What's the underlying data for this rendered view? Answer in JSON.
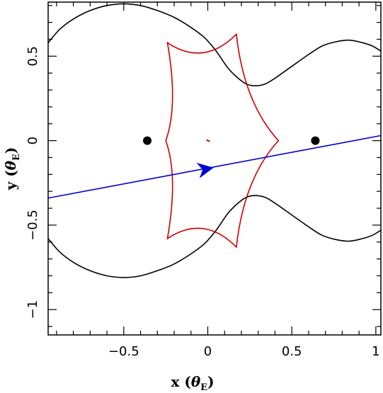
{
  "chart_data": {
    "type": "line",
    "title": "",
    "xlabel": {
      "main": "x (",
      "symbol": "θ",
      "sub": "E",
      "close": ")"
    },
    "ylabel": {
      "main": "y (",
      "symbol": "θ",
      "sub": "E",
      "close": ")"
    },
    "xlim": [
      -0.95,
      1.03
    ],
    "ylim": [
      -1.15,
      0.82
    ],
    "xticks_major": [
      -0.5,
      0,
      0.5,
      1
    ],
    "xtick_labels": [
      "−0.5",
      "0",
      "0.5",
      "1"
    ],
    "yticks_major": [
      -1,
      -0.5,
      0,
      0.5
    ],
    "ytick_labels": [
      "−1",
      "−0.5",
      "0",
      "0.5"
    ],
    "minor_step": 0.1,
    "grid": false,
    "colors": {
      "critical_curve": "#000000",
      "caustic": "#cc0000",
      "source_trajectory": "#0000cc",
      "lens": "#000000"
    },
    "lenses": [
      {
        "x": -0.36,
        "y": 0.0
      },
      {
        "x": 0.64,
        "y": 0.0
      }
    ],
    "critical_curve": {
      "upper": [
        [
          -0.95,
          0.58
        ],
        [
          -0.88,
          0.66
        ],
        [
          -0.8,
          0.72
        ],
        [
          -0.7,
          0.77
        ],
        [
          -0.6,
          0.8
        ],
        [
          -0.5,
          0.81
        ],
        [
          -0.4,
          0.8
        ],
        [
          -0.3,
          0.77
        ],
        [
          -0.2,
          0.73
        ],
        [
          -0.1,
          0.67
        ],
        [
          -0.02,
          0.61
        ],
        [
          0.05,
          0.53
        ],
        [
          0.12,
          0.43
        ],
        [
          0.18,
          0.37
        ],
        [
          0.23,
          0.335
        ],
        [
          0.28,
          0.325
        ],
        [
          0.34,
          0.335
        ],
        [
          0.4,
          0.37
        ],
        [
          0.5,
          0.44
        ],
        [
          0.6,
          0.51
        ],
        [
          0.68,
          0.56
        ],
        [
          0.76,
          0.585
        ],
        [
          0.84,
          0.595
        ],
        [
          0.92,
          0.58
        ],
        [
          0.98,
          0.56
        ],
        [
          1.03,
          0.53
        ]
      ],
      "lower": [
        [
          -0.95,
          -0.58
        ],
        [
          -0.88,
          -0.66
        ],
        [
          -0.8,
          -0.72
        ],
        [
          -0.7,
          -0.77
        ],
        [
          -0.6,
          -0.8
        ],
        [
          -0.5,
          -0.81
        ],
        [
          -0.4,
          -0.8
        ],
        [
          -0.3,
          -0.77
        ],
        [
          -0.2,
          -0.73
        ],
        [
          -0.1,
          -0.67
        ],
        [
          -0.02,
          -0.61
        ],
        [
          0.05,
          -0.53
        ],
        [
          0.12,
          -0.43
        ],
        [
          0.18,
          -0.37
        ],
        [
          0.23,
          -0.335
        ],
        [
          0.28,
          -0.325
        ],
        [
          0.34,
          -0.335
        ],
        [
          0.4,
          -0.37
        ],
        [
          0.5,
          -0.44
        ],
        [
          0.6,
          -0.51
        ],
        [
          0.68,
          -0.56
        ],
        [
          0.76,
          -0.585
        ],
        [
          0.84,
          -0.595
        ],
        [
          0.92,
          -0.58
        ],
        [
          0.98,
          -0.56
        ],
        [
          1.03,
          -0.53
        ]
      ]
    },
    "caustic": {
      "cusps": [
        [
          -0.24,
          0.58
        ],
        [
          0.17,
          0.63
        ],
        [
          0.42,
          0.0
        ],
        [
          0.17,
          -0.63
        ],
        [
          -0.24,
          -0.58
        ],
        [
          -0.25,
          0.0
        ]
      ],
      "closed": true,
      "center_mark": [
        0.0,
        0.0
      ]
    },
    "source_trajectory": {
      "start": [
        -0.95,
        -0.34
      ],
      "end": [
        1.03,
        0.03
      ],
      "arrow_at": [
        -0.02,
        -0.17
      ]
    }
  }
}
